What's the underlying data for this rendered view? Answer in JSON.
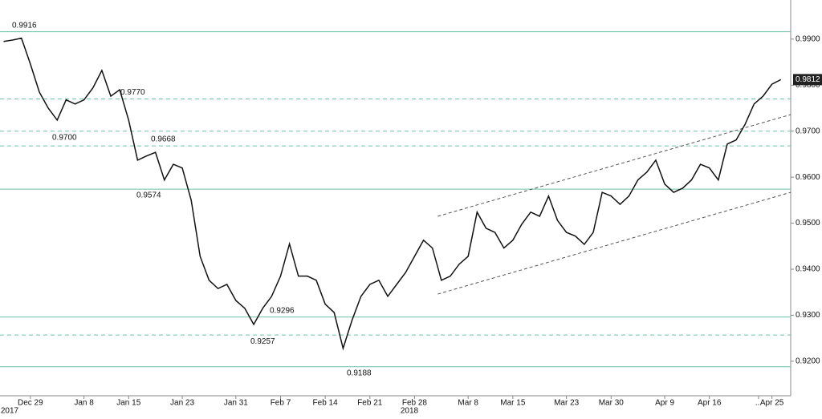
{
  "chart_data": {
    "type": "line",
    "xlim": [
      -3.4,
      85.1
    ],
    "ylim": [
      0.9125,
      0.9985
    ],
    "yticks": [
      {
        "value": 0.92,
        "label": "0.9200"
      },
      {
        "value": 0.93,
        "label": "0.9300"
      },
      {
        "value": 0.94,
        "label": "0.9400"
      },
      {
        "value": 0.95,
        "label": "0.9500"
      },
      {
        "value": 0.96,
        "label": "0.9600"
      },
      {
        "value": 0.97,
        "label": "0.9700"
      },
      {
        "value": 0.98,
        "label": "0.9800"
      },
      {
        "value": 0.99,
        "label": "0.9900"
      }
    ],
    "xticks": [
      {
        "value": 0,
        "label": "Dec 29"
      },
      {
        "value": 6,
        "label": "Jan 8"
      },
      {
        "value": 11,
        "label": "Jan 15"
      },
      {
        "value": 17,
        "label": "Jan 23"
      },
      {
        "value": 23,
        "label": "Jan 31"
      },
      {
        "value": 28,
        "label": "Feb 7"
      },
      {
        "value": 33,
        "label": "Feb 14"
      },
      {
        "value": 38,
        "label": "Feb 21"
      },
      {
        "value": 43,
        "label": "Feb 28"
      },
      {
        "value": 49,
        "label": "Mar 8"
      },
      {
        "value": 54,
        "label": "Mar 15"
      },
      {
        "value": 60,
        "label": "Mar 23"
      },
      {
        "value": 65,
        "label": "Mar 30"
      },
      {
        "value": 71,
        "label": "Apr 9"
      },
      {
        "value": 76,
        "label": "Apr 16"
      },
      {
        "value": 81.5,
        "label": "..."
      },
      {
        "value": 83,
        "label": "Apr 25"
      }
    ],
    "year_labels": [
      "2017",
      "2018"
    ],
    "series": [
      {
        "color": "#111111",
        "x": [
          -3,
          -2,
          -1,
          0,
          1,
          2,
          3,
          4,
          5,
          6,
          7,
          8,
          9,
          10,
          11,
          12,
          13,
          14,
          15,
          16,
          17,
          18,
          19,
          20,
          21,
          22,
          23,
          24,
          25,
          26,
          27,
          28,
          29,
          30,
          31,
          32,
          33,
          34,
          35,
          36,
          37,
          38,
          39,
          40,
          41,
          42,
          43,
          44,
          45,
          46,
          47,
          48,
          49,
          50,
          51,
          52,
          53,
          54,
          55,
          56,
          57,
          58,
          59,
          60,
          61,
          62,
          63,
          64,
          65,
          66,
          67,
          68,
          69,
          70,
          71,
          72,
          73,
          74,
          75,
          76,
          77,
          78,
          79,
          80,
          81,
          82,
          83,
          84
        ],
        "values": [
          0.9895,
          0.9898,
          0.9902,
          0.9846,
          0.9785,
          0.975,
          0.9724,
          0.9768,
          0.9759,
          0.9768,
          0.9794,
          0.9832,
          0.9776,
          0.979,
          0.9724,
          0.9637,
          0.9646,
          0.9654,
          0.9594,
          0.9628,
          0.962,
          0.955,
          0.9428,
          0.9376,
          0.9358,
          0.9367,
          0.9332,
          0.9315,
          0.928,
          0.9315,
          0.9341,
          0.9385,
          0.9455,
          0.9385,
          0.9385,
          0.9376,
          0.9324,
          0.9306,
          0.9228,
          0.9289,
          0.9341,
          0.9367,
          0.9376,
          0.9341,
          0.9367,
          0.9393,
          0.9428,
          0.9463,
          0.9446,
          0.9376,
          0.9385,
          0.9411,
          0.9428,
          0.9524,
          0.9489,
          0.948,
          0.9446,
          0.9463,
          0.9498,
          0.9524,
          0.9515,
          0.9559,
          0.9506,
          0.948,
          0.9472,
          0.9454,
          0.948,
          0.9567,
          0.9559,
          0.9541,
          0.9559,
          0.9594,
          0.9611,
          0.9637,
          0.9585,
          0.9567,
          0.9576,
          0.9594,
          0.9628,
          0.962,
          0.9594,
          0.9672,
          0.9681,
          0.9715,
          0.9759,
          0.9776,
          0.9802,
          0.9812
        ]
      }
    ],
    "last_price": 0.9812,
    "levels": [
      {
        "value": 0.9916,
        "label": "0.9916",
        "style": "solid"
      },
      {
        "value": 0.977,
        "label": "0.9770",
        "style": "dashed"
      },
      {
        "value": 0.97,
        "label": "0.9700",
        "style": "dashed"
      },
      {
        "value": 0.9668,
        "label": "0.9668",
        "style": "dashed"
      },
      {
        "value": 0.9574,
        "label": "0.9574",
        "style": "solid"
      },
      {
        "value": 0.9296,
        "label": "0.9296",
        "style": "solid"
      },
      {
        "value": 0.9257,
        "label": "0.9257",
        "style": "dashed"
      },
      {
        "value": 0.9188,
        "label": "0.9188",
        "style": "solid"
      }
    ],
    "level_color": "#6cc0a8",
    "trendlines": [
      {
        "x": [
          45.6,
          85.1
        ],
        "y": [
          0.9515,
          0.9736
        ]
      },
      {
        "x": [
          45.6,
          85.1
        ],
        "y": [
          0.9346,
          0.9567
        ]
      }
    ],
    "trendline_color": "#555555"
  }
}
